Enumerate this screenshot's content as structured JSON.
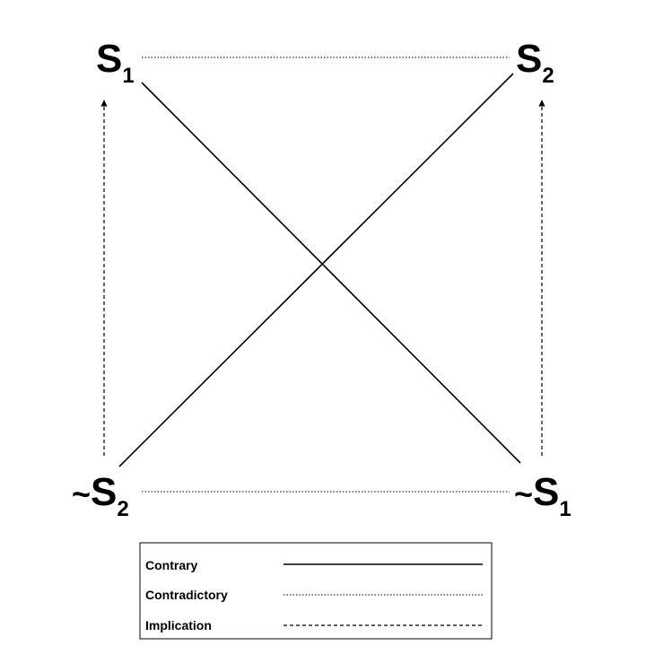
{
  "corners": {
    "top_left": {
      "tilde": "",
      "letter": "S",
      "subscript": "1"
    },
    "top_right": {
      "tilde": "",
      "letter": "S",
      "subscript": "2"
    },
    "bottom_left": {
      "tilde": "~",
      "letter": "S",
      "subscript": "2"
    },
    "bottom_right": {
      "tilde": "~",
      "letter": "S",
      "subscript": "1"
    }
  },
  "relations": [
    {
      "from": "top_left",
      "to": "bottom_right",
      "type": "Contrary"
    },
    {
      "from": "top_right",
      "to": "bottom_left",
      "type": "Contrary"
    },
    {
      "from": "top_left",
      "to": "top_right",
      "type": "Contradictory"
    },
    {
      "from": "bottom_left",
      "to": "bottom_right",
      "type": "Contradictory"
    },
    {
      "from": "bottom_left",
      "to": "top_left",
      "type": "Implication"
    },
    {
      "from": "bottom_right",
      "to": "top_right",
      "type": "Implication"
    }
  ],
  "legend": {
    "items": [
      {
        "label": "Contrary",
        "style": "solid"
      },
      {
        "label": "Contradictory",
        "style": "dotted"
      },
      {
        "label": "Implication",
        "style": "dashed"
      }
    ]
  },
  "colors": {
    "ink": "#000000",
    "background": "#ffffff"
  }
}
